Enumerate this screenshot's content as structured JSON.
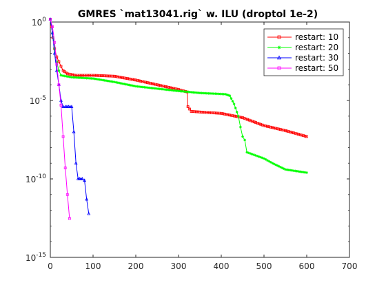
{
  "chart_data": {
    "type": "line",
    "title": "GMRES `mat13041.rig` w. ILU (droptol 1e-2)",
    "xlabel": "",
    "ylabel": "",
    "xlim": [
      0,
      700
    ],
    "ylim": [
      1e-15,
      1
    ],
    "yscale": "log",
    "grid": false,
    "legend_position": "top-right",
    "x_ticks": [
      "0",
      "100",
      "200",
      "300",
      "400",
      "500",
      "600",
      "700"
    ],
    "y_ticks": [
      {
        "base": "10",
        "exp": "0",
        "value": 1
      },
      {
        "base": "10",
        "exp": "-5",
        "value": 1e-05
      },
      {
        "base": "10",
        "exp": "-10",
        "value": 1e-10
      },
      {
        "base": "10",
        "exp": "-15",
        "value": 1e-15
      }
    ],
    "series": [
      {
        "name": "restart: 10",
        "color": "#ff0000",
        "marker": "square",
        "points": [
          [
            0,
            1.5
          ],
          [
            3,
            0.5
          ],
          [
            6,
            0.1
          ],
          [
            10,
            0.02
          ],
          [
            15,
            0.006
          ],
          [
            20,
            0.003
          ],
          [
            25,
            0.0015
          ],
          [
            30,
            0.0008
          ],
          [
            40,
            0.0005
          ],
          [
            60,
            0.0004
          ],
          [
            100,
            0.0004
          ],
          [
            150,
            0.00035
          ],
          [
            200,
            0.0002
          ],
          [
            250,
            0.0001
          ],
          [
            300,
            5e-05
          ],
          [
            320,
            3.5e-05
          ],
          [
            322,
            4e-06
          ],
          [
            330,
            2e-06
          ],
          [
            400,
            1.5e-06
          ],
          [
            450,
            8e-07
          ],
          [
            500,
            2.5e-07
          ],
          [
            550,
            1.2e-07
          ],
          [
            600,
            5e-08
          ]
        ]
      },
      {
        "name": "restart: 20",
        "color": "#00ff00",
        "marker": "asterisk",
        "points": [
          [
            0,
            1.5
          ],
          [
            5,
            0.2
          ],
          [
            10,
            0.02
          ],
          [
            15,
            0.003
          ],
          [
            20,
            0.0008
          ],
          [
            25,
            0.0004
          ],
          [
            50,
            0.0003
          ],
          [
            100,
            0.00025
          ],
          [
            150,
            0.00015
          ],
          [
            200,
            8e-05
          ],
          [
            300,
            4e-05
          ],
          [
            350,
            3e-05
          ],
          [
            410,
            2.5e-05
          ],
          [
            420,
            2e-05
          ],
          [
            430,
            6e-06
          ],
          [
            440,
            1e-06
          ],
          [
            445,
            2e-07
          ],
          [
            450,
            5e-08
          ],
          [
            455,
            3e-08
          ],
          [
            460,
            5e-09
          ],
          [
            500,
            2e-09
          ],
          [
            520,
            1e-09
          ],
          [
            550,
            4e-10
          ],
          [
            600,
            2.5e-10
          ]
        ]
      },
      {
        "name": "restart: 30",
        "color": "#0000ff",
        "marker": "triangle",
        "points": [
          [
            0,
            1.5
          ],
          [
            5,
            0.2
          ],
          [
            10,
            0.01
          ],
          [
            15,
            0.0008
          ],
          [
            20,
            0.0001
          ],
          [
            25,
            1e-05
          ],
          [
            30,
            4e-06
          ],
          [
            35,
            4e-06
          ],
          [
            50,
            4e-06
          ],
          [
            55,
            1e-07
          ],
          [
            60,
            1e-09
          ],
          [
            65,
            1e-10
          ],
          [
            75,
            1e-10
          ],
          [
            80,
            8e-11
          ],
          [
            85,
            5e-12
          ],
          [
            90,
            6e-13
          ]
        ]
      },
      {
        "name": "restart: 50",
        "color": "#ff00ff",
        "marker": "square",
        "points": [
          [
            0,
            1.5
          ],
          [
            5,
            0.5
          ],
          [
            10,
            0.05
          ],
          [
            15,
            0.002
          ],
          [
            20,
            0.0001
          ],
          [
            25,
            5e-06
          ],
          [
            30,
            5e-08
          ],
          [
            35,
            5e-10
          ],
          [
            40,
            1e-11
          ],
          [
            45,
            3e-13
          ]
        ]
      }
    ]
  }
}
